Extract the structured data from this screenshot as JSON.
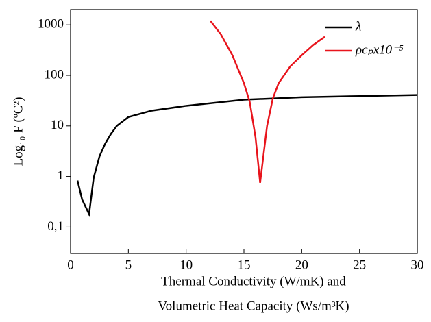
{
  "chart_data": {
    "type": "line",
    "x_label": [
      "Thermal Conductivity (W/mK) and",
      "Volumetric Heat Capacity (Ws/m³K)"
    ],
    "y_label": "Log₁₀ F (ºC²)",
    "log_y": true,
    "xlim": [
      0,
      30
    ],
    "xticks": [
      0,
      5,
      10,
      15,
      20,
      25,
      30
    ],
    "ylim": [
      0.03,
      2000
    ],
    "yticks": [
      {
        "value": 0.1,
        "label": "0,1"
      },
      1,
      10,
      100,
      1000
    ],
    "legend": "upper right",
    "series": [
      {
        "name": "λ",
        "color": "#000000",
        "x": [
          0.6,
          1.0,
          1.6,
          2.0,
          2.5,
          3.0,
          3.5,
          4.0,
          5.0,
          7.0,
          10.0,
          15.0,
          20.0,
          25.0,
          30.0
        ],
        "values": [
          0.83,
          0.35,
          0.18,
          0.95,
          2.5,
          4.5,
          7,
          10,
          15,
          20,
          25,
          33,
          37,
          39,
          41
        ]
      },
      {
        "name": "ρcₚx10⁻⁵",
        "color": "#e8141c",
        "x": [
          12.1,
          13.0,
          14.0,
          15.0,
          15.5,
          16.0,
          16.4,
          17.0,
          17.5,
          18.0,
          19.0,
          20.0,
          21.0,
          22.0
        ],
        "values": [
          1200,
          650,
          250,
          70,
          30,
          6,
          0.75,
          10,
          35,
          70,
          150,
          250,
          400,
          580
        ]
      }
    ]
  }
}
